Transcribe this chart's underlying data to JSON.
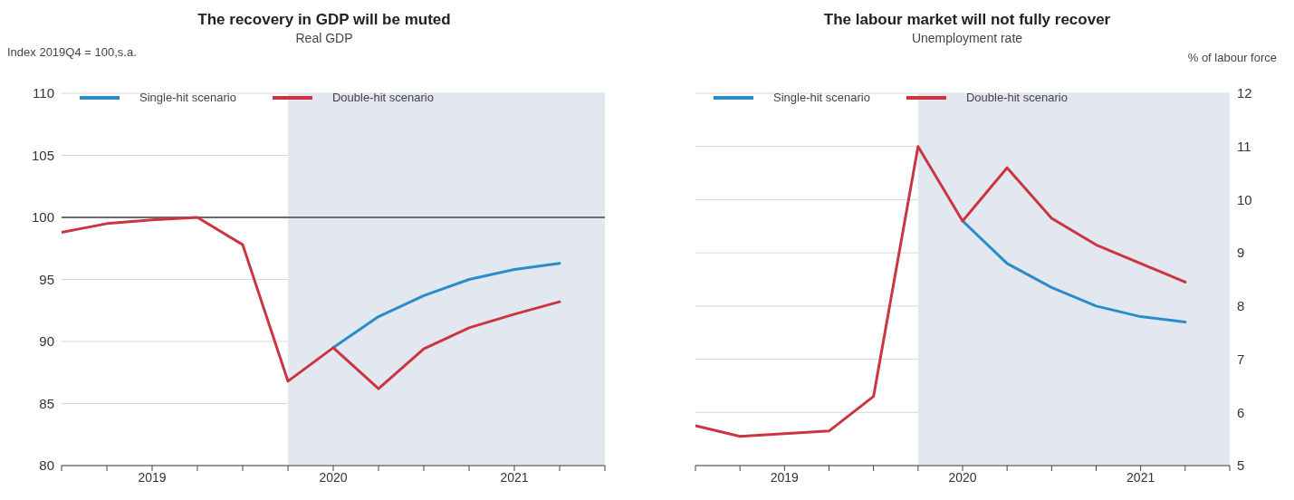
{
  "chart_data": [
    {
      "type": "line",
      "title": "The recovery in GDP will be muted",
      "subtitle": "Real GDP",
      "ylabel": "Index 2019Q4 = 100,s.a.",
      "x": [
        2019,
        2019.25,
        2019.5,
        2019.75,
        2020,
        2020.25,
        2020.5,
        2020.75,
        2021,
        2021.25,
        2021.5,
        2021.75
      ],
      "xlim": [
        2019,
        2022
      ],
      "xticks": [
        {
          "value": 2019,
          "label": null
        },
        {
          "value": 2019.25,
          "label": null
        },
        {
          "value": 2019.5,
          "label": "2019"
        },
        {
          "value": 2019.75,
          "label": null
        },
        {
          "value": 2020,
          "label": null
        },
        {
          "value": 2020.25,
          "label": null
        },
        {
          "value": 2020.5,
          "label": "2020"
        },
        {
          "value": 2020.75,
          "label": null
        },
        {
          "value": 2021,
          "label": null
        },
        {
          "value": 2021.25,
          "label": null
        },
        {
          "value": 2021.5,
          "label": "2021"
        },
        {
          "value": 2021.75,
          "label": null
        },
        {
          "value": 2022,
          "label": null
        }
      ],
      "ylim": [
        80,
        110
      ],
      "yticks": [
        80,
        85,
        90,
        95,
        100,
        105,
        110
      ],
      "series": [
        {
          "name": "Single-hit scenario",
          "color": "#2b8ccc",
          "x": [
            2020.5,
            2020.75,
            2021,
            2021.25,
            2021.5,
            2021.75
          ],
          "values": [
            89.5,
            92.0,
            93.7,
            95.0,
            95.8,
            96.3
          ]
        },
        {
          "name": "Double-hit scenario",
          "color": "#cc3440",
          "values": [
            98.8,
            99.5,
            99.8,
            100,
            97.8,
            86.8,
            89.5,
            86.2,
            89.4,
            91.1,
            92.2,
            93.2
          ]
        }
      ],
      "ref_lines": [
        {
          "axis": "y",
          "value": 100,
          "label": null,
          "color": "#6b6b6b"
        }
      ],
      "bands": [
        {
          "axis": "x",
          "from": 2020.25,
          "to": 2022,
          "label": null,
          "color": "#e2e7f0"
        }
      ],
      "grid": "y",
      "legend": "top left"
    },
    {
      "type": "line",
      "title": "The labour market will not fully recover",
      "subtitle": "Unemployment rate",
      "y2label": "% of labour force",
      "x": [
        2019,
        2019.25,
        2019.5,
        2019.75,
        2020,
        2020.25,
        2020.5,
        2020.75,
        2021,
        2021.25,
        2021.5,
        2021.75
      ],
      "xlim": [
        2019,
        2022
      ],
      "xticks": [
        {
          "value": 2019,
          "label": null
        },
        {
          "value": 2019.25,
          "label": null
        },
        {
          "value": 2019.5,
          "label": "2019"
        },
        {
          "value": 2019.75,
          "label": null
        },
        {
          "value": 2020,
          "label": null
        },
        {
          "value": 2020.25,
          "label": null
        },
        {
          "value": 2020.5,
          "label": "2020"
        },
        {
          "value": 2020.75,
          "label": null
        },
        {
          "value": 2021,
          "label": null
        },
        {
          "value": 2021.25,
          "label": null
        },
        {
          "value": 2021.5,
          "label": "2021"
        },
        {
          "value": 2021.75,
          "label": null
        },
        {
          "value": 2022,
          "label": null
        }
      ],
      "y2lim": [
        5,
        12
      ],
      "y2ticks": [
        5,
        6,
        7,
        8,
        9,
        10,
        11,
        12
      ],
      "series": [
        {
          "name": "Single-hit scenario",
          "color": "#2b8ccc",
          "axis": "y2",
          "x": [
            2020.5,
            2020.75,
            2021,
            2021.25,
            2021.5,
            2021.75
          ],
          "values": [
            9.6,
            8.8,
            8.35,
            8.0,
            7.8,
            7.7
          ]
        },
        {
          "name": "Double-hit scenario",
          "color": "#cc3440",
          "axis": "y2",
          "values": [
            5.75,
            5.55,
            5.6,
            5.65,
            6.3,
            11.0,
            9.6,
            10.6,
            9.65,
            9.15,
            8.8,
            8.45
          ]
        }
      ],
      "bands": [
        {
          "axis": "x",
          "from": 2020.25,
          "to": 2022,
          "label": null,
          "color": "#e2e7f0"
        }
      ],
      "grid": "y",
      "legend": "top left"
    }
  ]
}
